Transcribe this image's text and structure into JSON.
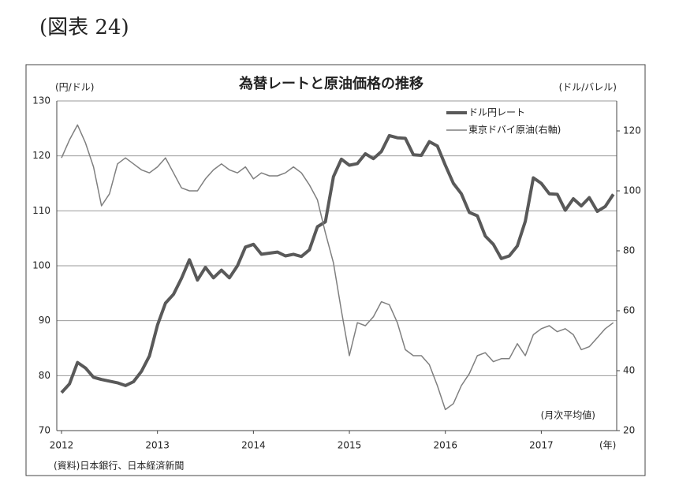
{
  "heading": "(図表 24)",
  "chart_data": {
    "type": "line",
    "title": "為替レートと原油価格の推移",
    "y_label": "(円/ドル)",
    "y2_label": "(ドル/バレル)",
    "x_label": "(年)",
    "note": "(月次平均値)",
    "source": "(資料)日本銀行、日本経済新聞",
    "categories": [
      "2012",
      null,
      null,
      null,
      null,
      null,
      null,
      null,
      null,
      null,
      null,
      null,
      "2013",
      null,
      null,
      null,
      null,
      null,
      null,
      null,
      null,
      null,
      null,
      null,
      "2014",
      null,
      null,
      null,
      null,
      null,
      null,
      null,
      null,
      null,
      null,
      null,
      "2015",
      null,
      null,
      null,
      null,
      null,
      null,
      null,
      null,
      null,
      null,
      null,
      "2016",
      null,
      null,
      null,
      null,
      null,
      null,
      null,
      null,
      null,
      null,
      null,
      "2017",
      null,
      null,
      null,
      null,
      null,
      null,
      null,
      null,
      null
    ],
    "ylim": [
      70,
      130
    ],
    "yticks": [
      70,
      80,
      90,
      100,
      110,
      120,
      130
    ],
    "y2lim": [
      20,
      130
    ],
    "y2ticks": [
      20,
      40,
      60,
      80,
      100,
      120
    ],
    "grid": true,
    "legend": "upper right",
    "series": [
      {
        "name": "ドル円レート",
        "color": "#595959",
        "width": 4,
        "values": [
          76.9,
          78.5,
          82.4,
          81.4,
          79.7,
          79.3,
          79.0,
          78.7,
          78.2,
          78.9,
          80.8,
          83.6,
          89.2,
          93.2,
          94.8,
          97.7,
          101.1,
          97.4,
          99.7,
          97.8,
          99.2,
          97.8,
          100.0,
          103.4,
          103.9,
          102.1,
          102.3,
          102.5,
          101.8,
          102.1,
          101.7,
          102.9,
          107.1,
          108.0,
          116.2,
          119.4,
          118.3,
          118.6,
          120.4,
          119.5,
          120.8,
          123.7,
          123.3,
          123.2,
          120.2,
          120.1,
          122.6,
          121.8,
          118.3,
          115.0,
          113.1,
          109.7,
          109.1,
          105.4,
          103.9,
          101.3,
          101.8,
          103.6,
          108.1,
          116.0,
          115.0,
          113.1,
          113.0,
          110.1,
          112.2,
          110.9,
          112.4,
          109.9,
          110.8,
          113.0
        ]
      },
      {
        "name": "東京ドバイ原油(右軸)",
        "color": "#7f7f7f",
        "width": 1.5,
        "axis": "y2",
        "values": [
          111,
          117,
          122,
          116,
          108,
          95,
          99,
          109,
          111,
          109,
          107,
          106,
          108,
          111,
          106,
          101,
          100,
          100,
          104,
          107,
          109,
          107,
          106,
          108,
          104,
          106,
          105,
          105,
          106,
          108,
          106,
          102,
          97,
          86,
          76,
          60,
          45,
          56,
          55,
          58,
          63,
          62,
          56,
          47,
          45,
          45,
          42,
          35,
          27,
          29,
          35,
          39,
          45,
          46,
          43,
          44,
          44,
          49,
          45,
          52,
          54,
          55,
          53,
          54,
          52,
          47,
          48,
          51,
          54,
          56
        ]
      }
    ]
  }
}
